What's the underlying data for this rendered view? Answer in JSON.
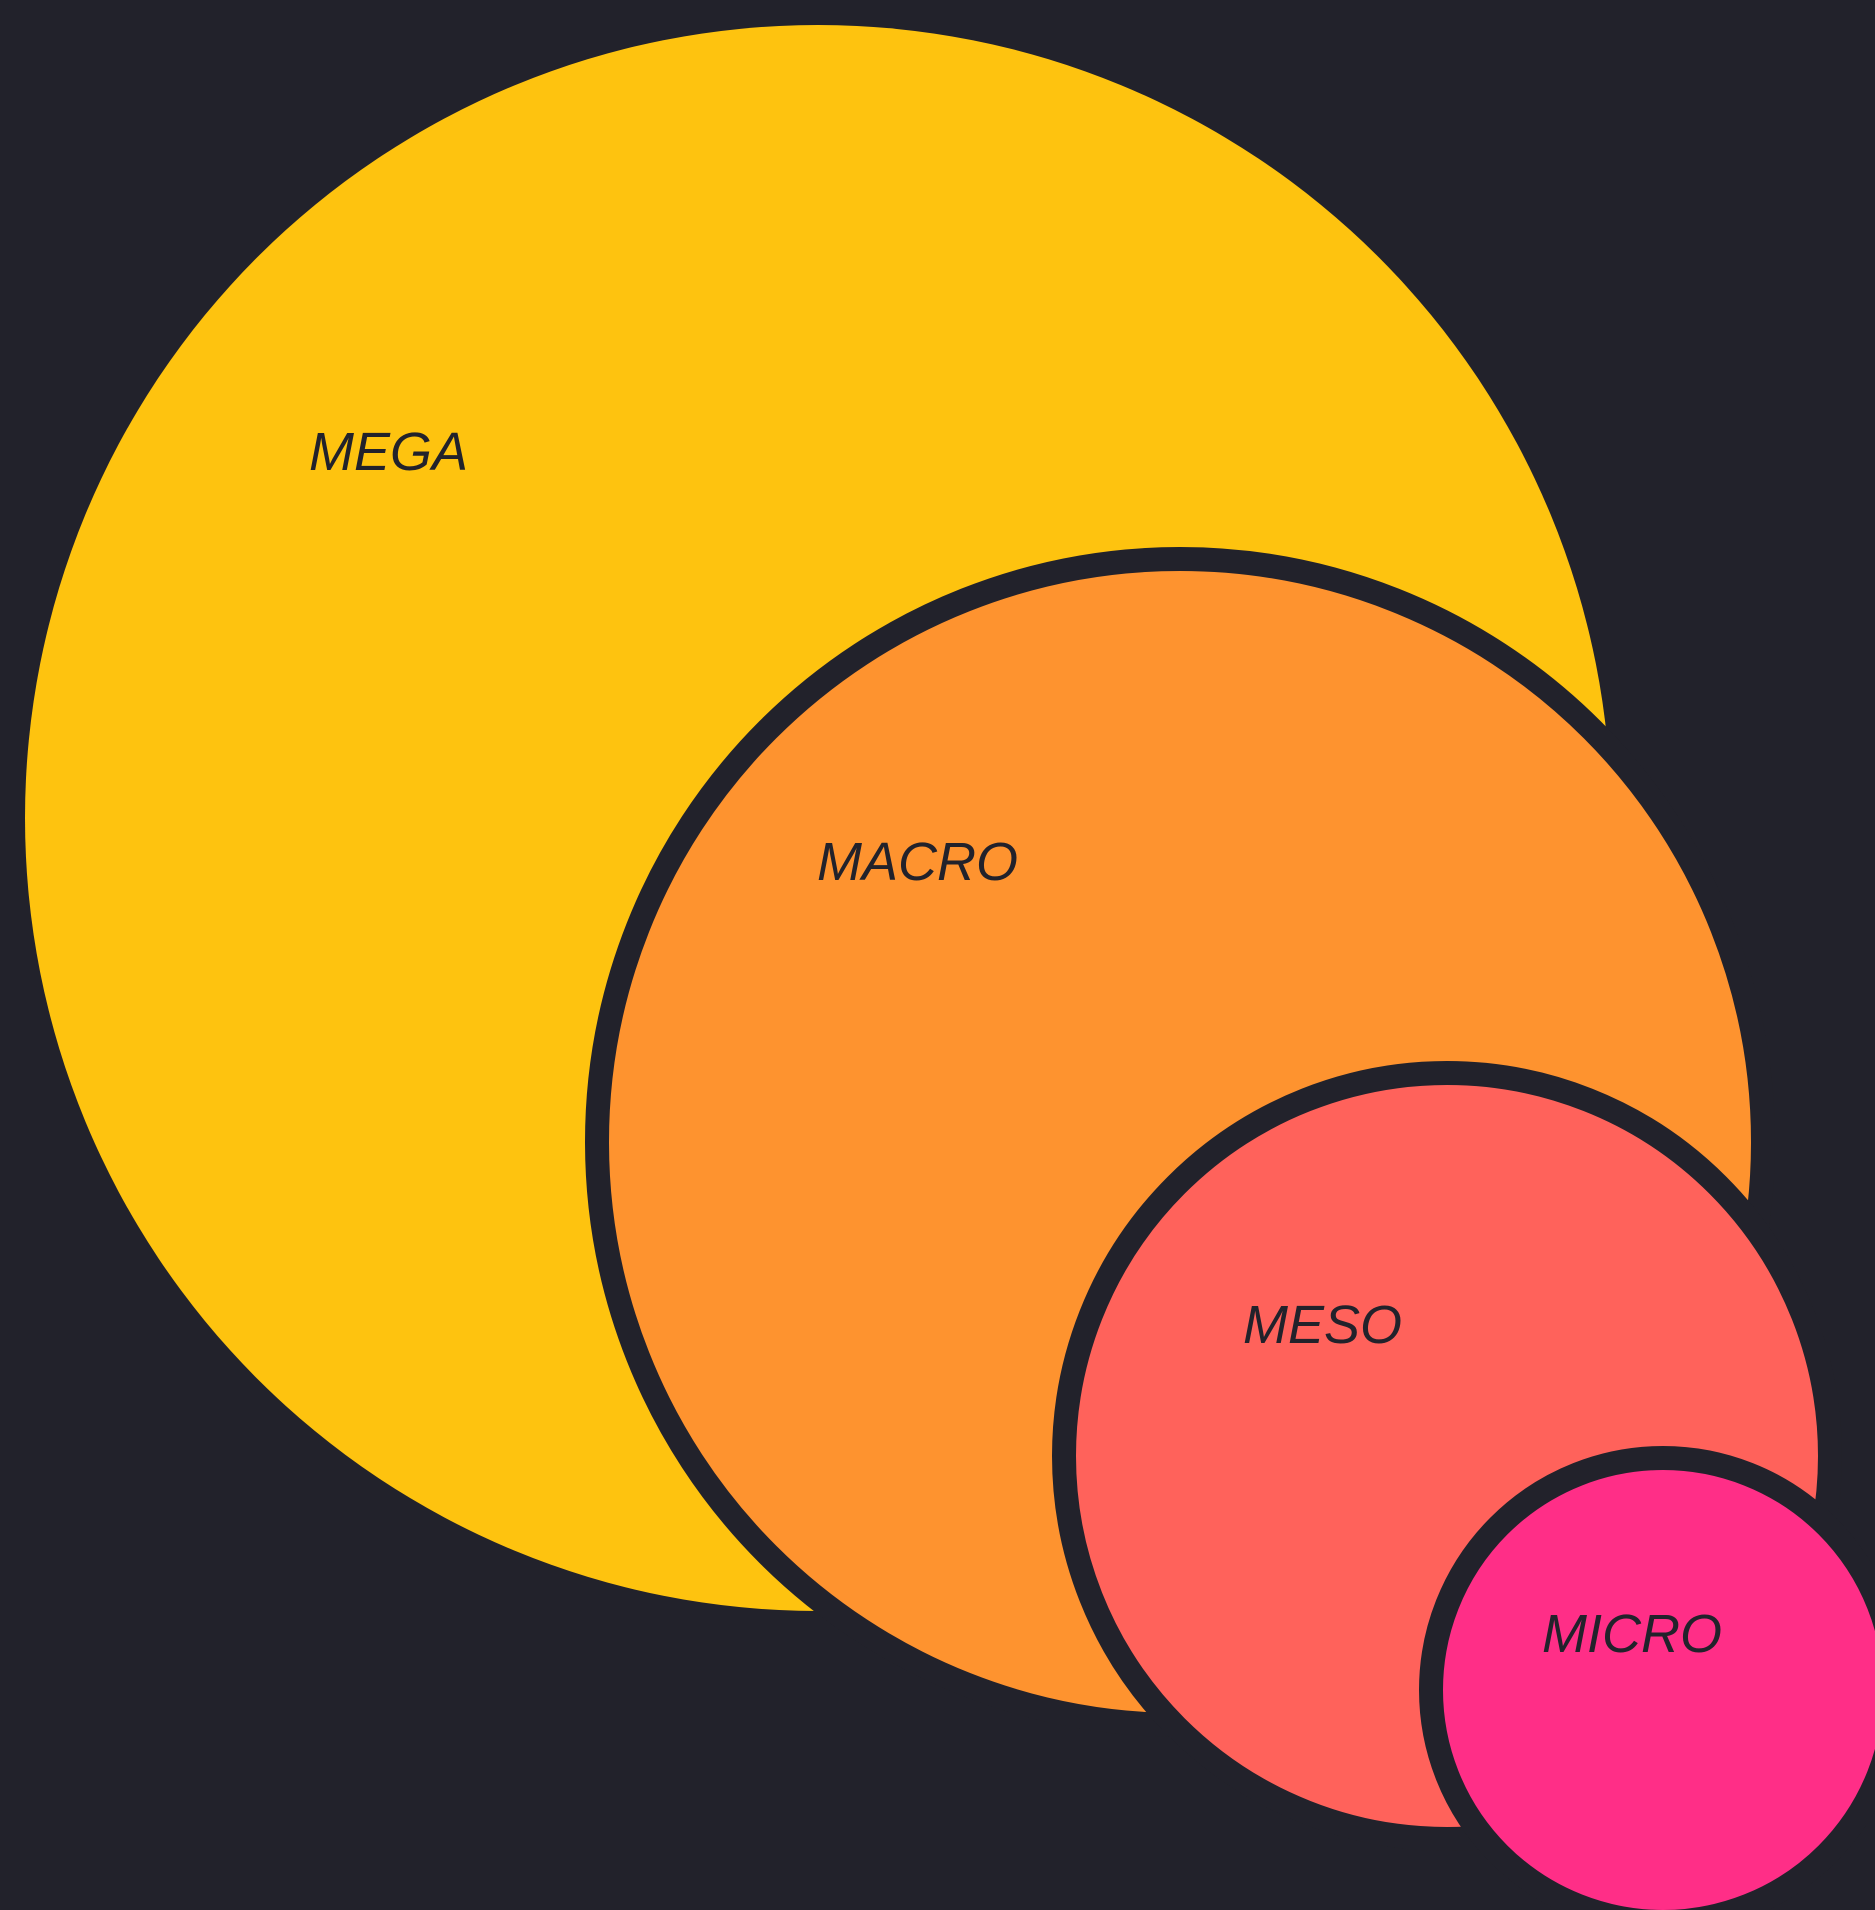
{
  "colors": {
    "background": "#22222b",
    "mega": "#fec30f",
    "macro": "#fe932f",
    "meso": "#ff625b",
    "micro": "#ff2e87",
    "label": "#22222b"
  },
  "circles": {
    "mega": {
      "label": "MEGA"
    },
    "macro": {
      "label": "MACRO"
    },
    "meso": {
      "label": "MESO"
    },
    "micro": {
      "label": "MICRO"
    }
  }
}
